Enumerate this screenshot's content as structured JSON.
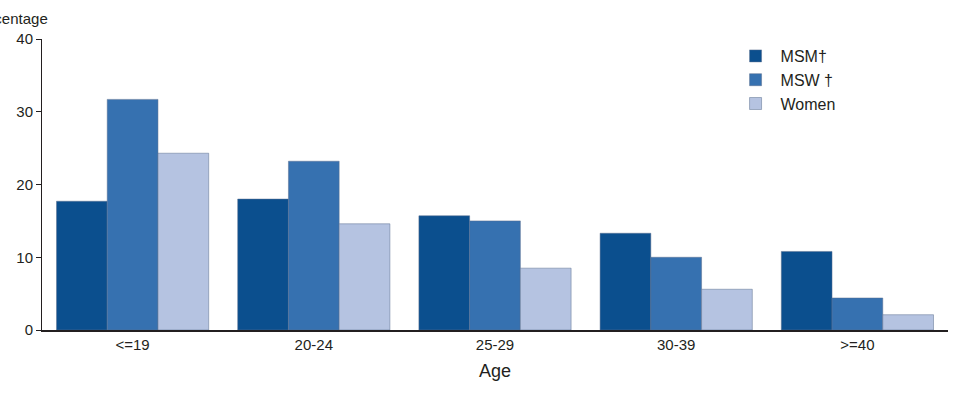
{
  "chart_data": {
    "type": "bar",
    "x_label": "Age",
    "y_label": "Percentage",
    "categories": [
      "<=19",
      "20-24",
      "25-29",
      "30-39",
      ">=40"
    ],
    "series": [
      {
        "name": "MSM†",
        "color": "#0b4f8e",
        "values": [
          17.7,
          18.0,
          15.7,
          13.3,
          10.8
        ]
      },
      {
        "name": "MSW †",
        "color": "#3671b0",
        "values": [
          31.7,
          23.2,
          15.0,
          10.0,
          4.4
        ]
      },
      {
        "name": "Women",
        "color": "#b5c3e1",
        "values": [
          24.3,
          14.6,
          8.5,
          5.6,
          2.1
        ]
      }
    ],
    "ylim": [
      0,
      40
    ],
    "yticks": [
      0,
      10,
      20,
      30,
      40
    ],
    "grid": false,
    "legend": "upper right"
  }
}
